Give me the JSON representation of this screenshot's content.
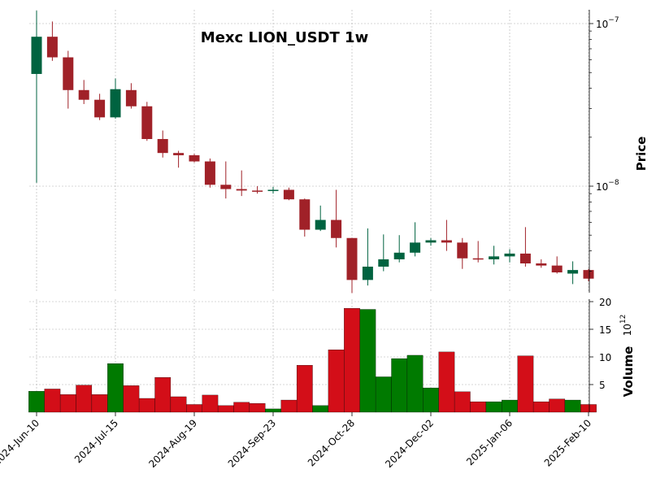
{
  "chart_data": {
    "type": "candlestick",
    "title": "Mexc LION_USDT 1w",
    "price_axis": {
      "label": "Price",
      "scale": "log",
      "tick_labels": [
        "10^{-8}",
        "10^{-7}"
      ],
      "tick_values": [
        1e-08,
        1e-07
      ]
    },
    "volume_axis": {
      "label": "Volume",
      "multiplier_label": "10^{12}",
      "tick_labels": [
        "5",
        "10",
        "15",
        "20"
      ],
      "tick_values": [
        5,
        10,
        15,
        20
      ],
      "ylim": [
        0,
        20
      ]
    },
    "x_tick_labels": [
      {
        "label": "2024-Jun-10",
        "index": 0
      },
      {
        "label": "2024-Jul-15",
        "index": 5
      },
      {
        "label": "2024-Aug-19",
        "index": 10
      },
      {
        "label": "2024-Sep-23",
        "index": 15
      },
      {
        "label": "2024-Oct-28",
        "index": 20
      },
      {
        "label": "2024-Dec-02",
        "index": 25
      },
      {
        "label": "2025-Jan-06",
        "index": 30
      },
      {
        "label": "2025-Feb-10",
        "index": 35
      }
    ],
    "colors": {
      "up_candle": "#006340",
      "down_candle": "#a02128",
      "up_volume": "#007a00",
      "down_volume": "#d30e18",
      "grid": "#b0b0b0"
    },
    "grid": true,
    "candles": [
      {
        "open": 4.9e-08,
        "high": 1.2e-07,
        "low": 1.05e-08,
        "close": 8.3e-08,
        "volume": 3.8
      },
      {
        "open": 8.3e-08,
        "high": 1.03e-07,
        "low": 5.9e-08,
        "close": 6.2e-08,
        "volume": 4.2
      },
      {
        "open": 6.2e-08,
        "high": 6.8e-08,
        "low": 3e-08,
        "close": 3.9e-08,
        "volume": 3.2
      },
      {
        "open": 3.9e-08,
        "high": 4.5e-08,
        "low": 3.2e-08,
        "close": 3.4e-08,
        "volume": 4.9
      },
      {
        "open": 3.4e-08,
        "high": 3.7e-08,
        "low": 2.55e-08,
        "close": 2.65e-08,
        "volume": 3.2
      },
      {
        "open": 2.65e-08,
        "high": 4.6e-08,
        "low": 2.6e-08,
        "close": 3.95e-08,
        "volume": 8.8
      },
      {
        "open": 3.9e-08,
        "high": 4.3e-08,
        "low": 3e-08,
        "close": 3.1e-08,
        "volume": 4.8
      },
      {
        "open": 3.1e-08,
        "high": 3.3e-08,
        "low": 1.9e-08,
        "close": 1.95e-08,
        "volume": 2.5
      },
      {
        "open": 1.95e-08,
        "high": 2.2e-08,
        "low": 1.5e-08,
        "close": 1.6e-08,
        "volume": 6.3
      },
      {
        "open": 1.6e-08,
        "high": 1.65e-08,
        "low": 1.3e-08,
        "close": 1.55e-08,
        "volume": 2.8
      },
      {
        "open": 1.55e-08,
        "high": 1.58e-08,
        "low": 1.4e-08,
        "close": 1.42e-08,
        "volume": 1.4
      },
      {
        "open": 1.42e-08,
        "high": 1.48e-08,
        "low": 9.8e-09,
        "close": 1.02e-08,
        "volume": 3.1
      },
      {
        "open": 1.02e-08,
        "high": 1.42e-08,
        "low": 8.4e-09,
        "close": 9.6e-09,
        "volume": 1.2
      },
      {
        "open": 9.6e-09,
        "high": 1.25e-08,
        "low": 8.7e-09,
        "close": 9.4e-09,
        "volume": 1.8
      },
      {
        "open": 9.4e-09,
        "high": 1e-08,
        "low": 9e-09,
        "close": 9.35e-09,
        "volume": 1.6
      },
      {
        "open": 9.35e-09,
        "high": 9.9e-09,
        "low": 9e-09,
        "close": 9.5e-09,
        "volume": 0.6
      },
      {
        "open": 9.5e-09,
        "high": 9.8e-09,
        "low": 8.2e-09,
        "close": 8.3e-09,
        "volume": 2.2
      },
      {
        "open": 8.3e-09,
        "high": 8.4e-09,
        "low": 4.9e-09,
        "close": 5.4e-09,
        "volume": 8.5
      },
      {
        "open": 5.4e-09,
        "high": 7.6e-09,
        "low": 5.3e-09,
        "close": 6.2e-09,
        "volume": 1.2
      },
      {
        "open": 6.2e-09,
        "high": 9.5e-09,
        "low": 4.2e-09,
        "close": 4.8e-09,
        "volume": 11.3
      },
      {
        "open": 4.8e-09,
        "high": 4.8e-09,
        "low": 2.2e-09,
        "close": 2.65e-09,
        "volume": 18.8
      },
      {
        "open": 2.65e-09,
        "high": 5.5e-09,
        "low": 2.45e-09,
        "close": 3.2e-09,
        "volume": 18.6
      },
      {
        "open": 3.2e-09,
        "high": 5.05e-09,
        "low": 3e-09,
        "close": 3.55e-09,
        "volume": 6.4
      },
      {
        "open": 3.55e-09,
        "high": 5e-09,
        "low": 3.4e-09,
        "close": 3.9e-09,
        "volume": 9.7
      },
      {
        "open": 3.9e-09,
        "high": 6e-09,
        "low": 3.7e-09,
        "close": 4.5e-09,
        "volume": 10.3
      },
      {
        "open": 4.5e-09,
        "high": 4.8e-09,
        "low": 4.3e-09,
        "close": 4.65e-09,
        "volume": 4.4
      },
      {
        "open": 4.65e-09,
        "high": 6.2e-09,
        "low": 4e-09,
        "close": 4.5e-09,
        "volume": 10.9
      },
      {
        "open": 4.5e-09,
        "high": 4.8e-09,
        "low": 3.1e-09,
        "close": 3.6e-09,
        "volume": 3.7
      },
      {
        "open": 3.6e-09,
        "high": 4.6e-09,
        "low": 3.4e-09,
        "close": 3.55e-09,
        "volume": 1.9
      },
      {
        "open": 3.55e-09,
        "high": 4.3e-09,
        "low": 3.3e-09,
        "close": 3.7e-09,
        "volume": 1.9
      },
      {
        "open": 3.7e-09,
        "high": 4.1e-09,
        "low": 3.4e-09,
        "close": 3.85e-09,
        "volume": 2.2
      },
      {
        "open": 3.85e-09,
        "high": 5.6e-09,
        "low": 3.2e-09,
        "close": 3.35e-09,
        "volume": 10.2
      },
      {
        "open": 3.35e-09,
        "high": 3.55e-09,
        "low": 3.15e-09,
        "close": 3.25e-09,
        "volume": 1.9
      },
      {
        "open": 3.25e-09,
        "high": 3.7e-09,
        "low": 2.9e-09,
        "close": 2.95e-09,
        "volume": 2.4
      },
      {
        "open": 2.9e-09,
        "high": 3.45e-09,
        "low": 2.5e-09,
        "close": 3.05e-09,
        "volume": 2.2
      },
      {
        "open": 3.05e-09,
        "high": 3.1e-09,
        "low": 2.6e-09,
        "close": 2.7e-09,
        "volume": 1.4
      }
    ]
  }
}
